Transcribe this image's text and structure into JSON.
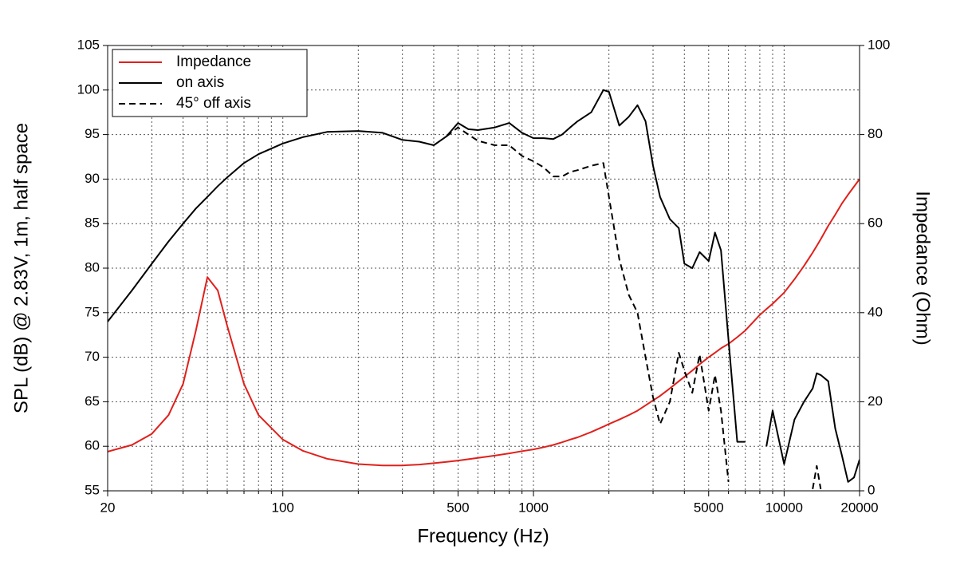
{
  "chart_data": {
    "type": "line",
    "xlabel": "Frequency (Hz)",
    "ylabel": "SPL (dB) @ 2.83V, 1m, half space",
    "y2label": "Impedance (Ohm)",
    "xscale": "log",
    "xlim": [
      20,
      20000
    ],
    "xticks": [
      20,
      100,
      500,
      1000,
      5000,
      10000,
      20000
    ],
    "xgrid": [
      30,
      40,
      50,
      60,
      70,
      80,
      90,
      200,
      300,
      400,
      600,
      700,
      800,
      900,
      2000,
      3000,
      4000,
      6000,
      7000,
      8000,
      9000
    ],
    "ylim": [
      55,
      105
    ],
    "yticks": [
      55,
      60,
      65,
      70,
      75,
      80,
      85,
      90,
      95,
      100,
      105
    ],
    "y2lim": [
      0,
      100
    ],
    "y2ticks": [
      0,
      20,
      40,
      60,
      80,
      100
    ],
    "grid": true,
    "legend": "upper left",
    "x": [
      20,
      25,
      30,
      35,
      40,
      45,
      50,
      55,
      60,
      70,
      80,
      100,
      120,
      150,
      200,
      250,
      300,
      350,
      400,
      450,
      500,
      550,
      600,
      700,
      800,
      900,
      1000,
      1100,
      1200,
      1300,
      1400,
      1500,
      1700,
      1900,
      2000,
      2200,
      2400,
      2600,
      2800,
      3000,
      3200,
      3500,
      3800,
      4000,
      4300,
      4600,
      5000,
      5300,
      5600,
      6000,
      6500,
      7000,
      7500,
      8000,
      8500,
      9000,
      10000,
      11000,
      12000,
      13000,
      13500,
      14000,
      15000,
      16000,
      17000,
      18000,
      19000,
      20000
    ],
    "series": [
      {
        "name": "Impedance",
        "color": "#e0201b",
        "axis": "y2",
        "dash": "solid",
        "values": [
          8.8,
          10.3,
          12.8,
          17,
          24,
          36,
          48,
          45,
          37,
          24,
          17,
          11.5,
          9,
          7.2,
          6,
          5.7,
          5.7,
          5.9,
          6.2,
          6.5,
          6.8,
          7.1,
          7.4,
          7.9,
          8.4,
          8.9,
          9.3,
          9.8,
          10.3,
          10.9,
          11.5,
          12,
          13.2,
          14.4,
          15,
          16,
          17,
          18,
          19.2,
          20.3,
          21.3,
          23,
          24.6,
          25.6,
          27,
          28.4,
          30,
          31,
          32,
          33,
          34.5,
          36,
          37.8,
          39.5,
          40.8,
          42,
          44.5,
          47.5,
          50.5,
          53.5,
          55,
          56.5,
          59.5,
          62,
          64.5,
          66.5,
          68.3,
          70
        ]
      },
      {
        "name": "on axis",
        "color": "#000000",
        "dash": "solid",
        "values": [
          74,
          77.5,
          80.5,
          83,
          85,
          86.7,
          88,
          89.2,
          90.2,
          91.8,
          92.8,
          94,
          94.7,
          95.3,
          95.4,
          95.2,
          94.4,
          94.2,
          93.8,
          94.8,
          96.3,
          95.6,
          95.5,
          95.8,
          96.3,
          95.2,
          94.6,
          94.6,
          94.5,
          95,
          95.8,
          96.5,
          97.5,
          100,
          99.8,
          96,
          97,
          98.3,
          96.5,
          91.5,
          88,
          85.5,
          84.5,
          80.5,
          80,
          81.8,
          80.8,
          84,
          82,
          72,
          60.5,
          60.5,
          null,
          null,
          60,
          64,
          58,
          63,
          65,
          66.5,
          68.2,
          68,
          67.3,
          62,
          59,
          56,
          56.5,
          58.5
        ]
      },
      {
        "name": "45° off axis",
        "color": "#000000",
        "dash": "dashed",
        "values": [
          null,
          null,
          null,
          null,
          null,
          null,
          null,
          null,
          null,
          null,
          null,
          null,
          null,
          null,
          null,
          null,
          null,
          null,
          null,
          94.8,
          95.8,
          95,
          94.3,
          93.8,
          93.8,
          92.6,
          92,
          91.3,
          90.3,
          90.3,
          90.8,
          91,
          91.5,
          91.8,
          88,
          81,
          77,
          75,
          70,
          65.5,
          62.5,
          65,
          70.5,
          68.5,
          66,
          70.3,
          64,
          68,
          64,
          56,
          null,
          null,
          null,
          null,
          null,
          null,
          null,
          null,
          null,
          55.2,
          57.8,
          55.2,
          null,
          null,
          null,
          null,
          null,
          null
        ]
      }
    ]
  }
}
